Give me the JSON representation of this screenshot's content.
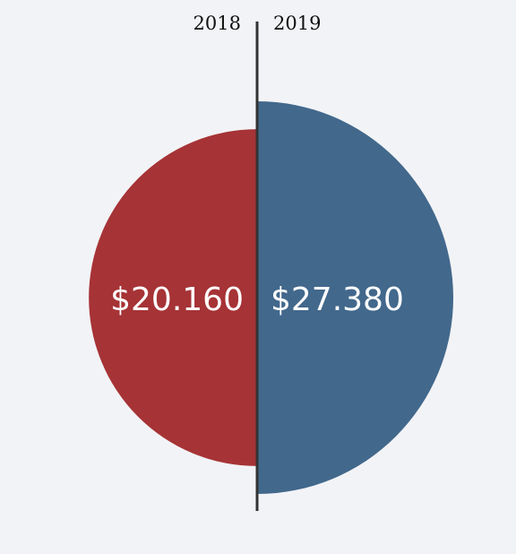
{
  "chart_data": {
    "type": "pie",
    "title": "",
    "series": [
      {
        "name": "2018",
        "value": 20160,
        "label": "$20.160",
        "color": "#a63336",
        "side": "left"
      },
      {
        "name": "2019",
        "value": 27380,
        "label": "$27.380",
        "color": "#42688c",
        "side": "right"
      }
    ],
    "divider_color": "#333333",
    "legend": "top"
  }
}
